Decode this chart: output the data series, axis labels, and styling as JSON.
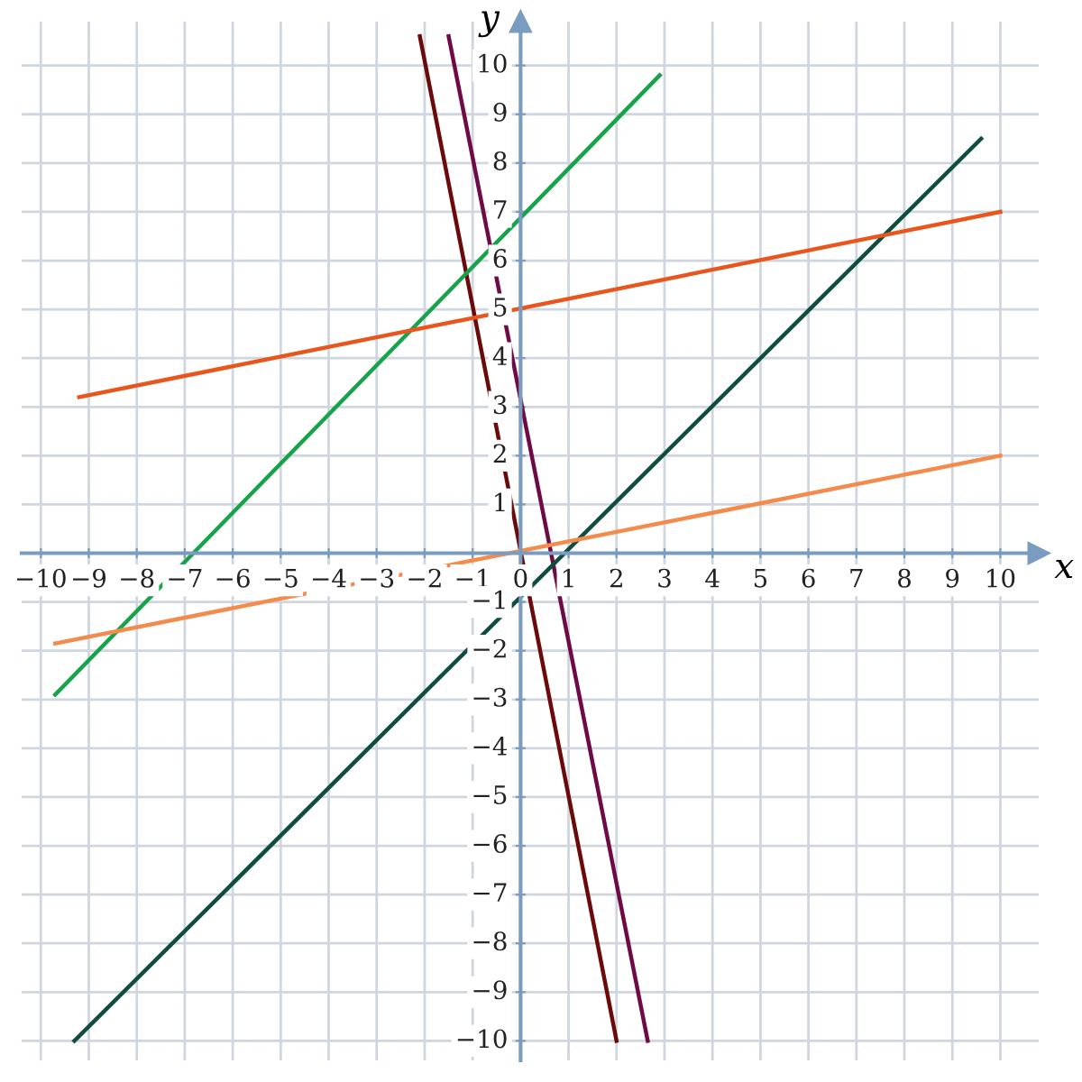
{
  "chart_data": {
    "type": "line",
    "xlabel": "x",
    "ylabel": "y",
    "xlim": [
      -10.4,
      10.8
    ],
    "ylim": [
      -10.4,
      10.9
    ],
    "xticks": [
      {
        "value": -10,
        "label": "−10"
      },
      {
        "value": -9,
        "label": "−9"
      },
      {
        "value": -8,
        "label": "−8"
      },
      {
        "value": -7,
        "label": "−7"
      },
      {
        "value": -6,
        "label": "−6"
      },
      {
        "value": -5,
        "label": "−5"
      },
      {
        "value": -4,
        "label": "−4"
      },
      {
        "value": -3,
        "label": "−3"
      },
      {
        "value": -2,
        "label": "−2"
      },
      {
        "value": -1,
        "label": "−1"
      },
      0,
      1,
      2,
      3,
      4,
      5,
      6,
      7,
      8,
      9,
      10
    ],
    "yticks": [
      {
        "value": -10,
        "label": "−10"
      },
      {
        "value": -9,
        "label": "−9"
      },
      {
        "value": -8,
        "label": "−8"
      },
      {
        "value": -7,
        "label": "−7"
      },
      {
        "value": -6,
        "label": "−6"
      },
      {
        "value": -5,
        "label": "−5"
      },
      {
        "value": -4,
        "label": "−4"
      },
      {
        "value": -3,
        "label": "−3"
      },
      {
        "value": -2,
        "label": "−2"
      },
      {
        "value": -1,
        "label": "−1"
      },
      1,
      2,
      3,
      4,
      5,
      6,
      7,
      8,
      9,
      10
    ],
    "grid": true,
    "marker": "none",
    "line_style": "solid",
    "series": [
      {
        "color": "#6b0a0a",
        "x": [
          -2.1,
          2.0
        ],
        "values": [
          10.6,
          -10
        ]
      },
      {
        "color": "#6e0a45",
        "x": [
          -1.5,
          2.65
        ],
        "values": [
          10.6,
          -10
        ]
      },
      {
        "color": "#17a34a",
        "x": [
          -9.7,
          2.9
        ],
        "values": [
          -2.9,
          9.8
        ]
      },
      {
        "color": "#0e4d3f",
        "x": [
          -9.3,
          9.6
        ],
        "values": [
          -10,
          8.5
        ]
      },
      {
        "color": "#e8561e",
        "x": [
          -9.2,
          10
        ],
        "values": [
          3.2,
          7.0
        ]
      },
      {
        "color": "#f28b4c",
        "x": [
          -9.7,
          10
        ],
        "values": [
          -1.85,
          2.0
        ]
      }
    ]
  }
}
